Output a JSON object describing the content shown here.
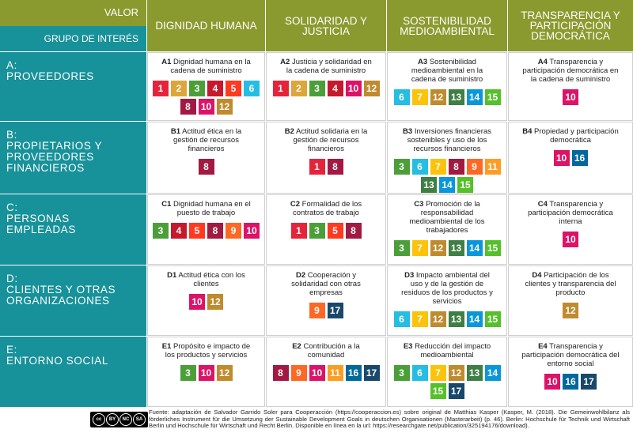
{
  "header": {
    "value_label": "VALOR",
    "group_label": "GRUPO DE INTERÉS",
    "values": [
      "DIGNIDAD HUMANA",
      "SOLIDARIDAD Y JUSTICIA",
      "SOSTENIBILIDAD MEDIOAMBIENTAL",
      "TRANSPARENCIA Y PARTICIPACIÓN DEMOCRÁTICA"
    ]
  },
  "goal_colors": {
    "1": "#e5243b",
    "2": "#dda63a",
    "3": "#4c9f38",
    "4": "#c5192d",
    "5": "#ff3a21",
    "6": "#26bde2",
    "7": "#fcc30b",
    "8": "#a21942",
    "9": "#fd6925",
    "10": "#dd1367",
    "11": "#fd9d24",
    "12": "#bf8b2e",
    "13": "#3f7e44",
    "14": "#0a97d9",
    "15": "#56c02b",
    "16": "#00689d",
    "17": "#19486a"
  },
  "rows": [
    {
      "group_code": "A:",
      "group": "PROVEEDORES",
      "cells": [
        {
          "code": "A1",
          "text": "Dignidad humana en la cadena de suministro",
          "goals": [
            1,
            2,
            3,
            4,
            5,
            6,
            8,
            10,
            12
          ]
        },
        {
          "code": "A2",
          "text": "Justicia y solidaridad en la cadena de suministro",
          "goals": [
            1,
            2,
            3,
            4,
            10,
            12
          ]
        },
        {
          "code": "A3",
          "text": "Sostenibilidad medioambiental en la cadena de suministro",
          "goals": [
            6,
            7,
            12,
            13,
            14,
            15
          ]
        },
        {
          "code": "A4",
          "text": "Transparencia y participación democrática en la cadena de suministro",
          "goals": [
            10
          ]
        }
      ]
    },
    {
      "group_code": "B:",
      "group": "PROPIETARIOS Y PROVEEDORES FINANCIEROS",
      "cells": [
        {
          "code": "B1",
          "text": "Actitud ética en la gestión de recursos financieros",
          "goals": [
            8
          ]
        },
        {
          "code": "B2",
          "text": "Actitud solidaria en la gestión de recursos financieros",
          "goals": [
            1,
            8
          ]
        },
        {
          "code": "B3",
          "text": "Inversiones financieras sostenibles y uso de los recursos financieros",
          "goals": [
            3,
            6,
            7,
            8,
            9,
            11,
            13,
            14,
            15
          ]
        },
        {
          "code": "B4",
          "text": "Propiedad y participación democrática",
          "goals": [
            10,
            16
          ]
        }
      ]
    },
    {
      "group_code": "C:",
      "group": "PERSONAS EMPLEADAS",
      "cells": [
        {
          "code": "C1",
          "text": "Dignidad humana en el puesto de trabajo",
          "goals": [
            3,
            4,
            5,
            8,
            9,
            10
          ]
        },
        {
          "code": "C2",
          "text": "Formalidad de los contratos de trabajo",
          "goals": [
            1,
            3,
            5,
            8
          ]
        },
        {
          "code": "C3",
          "text": "Promoción de la responsabilidad medioambiental de los trabajadores",
          "goals": [
            3,
            7,
            12,
            13,
            14,
            15
          ]
        },
        {
          "code": "C4",
          "text": "Transparencia y participación democrática interna",
          "goals": [
            10
          ]
        }
      ]
    },
    {
      "group_code": "D:",
      "group": "CLIENTES Y OTRAS ORGANIZACIONES",
      "cells": [
        {
          "code": "D1",
          "text": "Actitud ética con los clientes",
          "goals": [
            10,
            12
          ]
        },
        {
          "code": "D2",
          "text": "Cooperación y solidaridad con otras empresas",
          "goals": [
            9,
            17
          ]
        },
        {
          "code": "D3",
          "text": "Impacto ambiental del uso y de la gestión de residuos de los productos y servicios",
          "goals": [
            6,
            7,
            12,
            13,
            14,
            15
          ]
        },
        {
          "code": "D4",
          "text": "Participación de los clientes y transparencia del producto",
          "goals": [
            12
          ]
        }
      ]
    },
    {
      "group_code": "E:",
      "group": "ENTORNO SOCIAL",
      "cells": [
        {
          "code": "E1",
          "text": "Propósito e impacto de los productos y servicios",
          "goals": [
            3,
            10,
            12
          ]
        },
        {
          "code": "E2",
          "text": "Contribución a la comunidad",
          "goals": [
            8,
            9,
            10,
            11,
            16,
            17
          ]
        },
        {
          "code": "E3",
          "text": "Reducción del impacto medioambiental",
          "goals": [
            3,
            6,
            7,
            12,
            13,
            14,
            15,
            17
          ]
        },
        {
          "code": "E4",
          "text": "Transparencia y participación democrática del entorno social",
          "goals": [
            10,
            16,
            17
          ]
        }
      ]
    }
  ],
  "footer": {
    "license": [
      "cc",
      "BY",
      "NC",
      "SA"
    ],
    "source": "Fuente: adaptación de Salvador Garrido Soler para Cooperacción (https://cooperaccion.es) sobre original de Matthias Kasper (Kasper, M. (2018). Die Gemeinwohlbilanz als förderliches Instrument für die Umsetzung der Sustainable Development Goals in deutschen Organisationen (Masterarbeit) (p. 46). Berlin: Hochschule für Technik und Wirtschaft Berlin und Hochschule für Wirtschaft und Recht Berlin. Disponible en línea en la url: https://researchgate.net/publication/325194176/download)."
  }
}
